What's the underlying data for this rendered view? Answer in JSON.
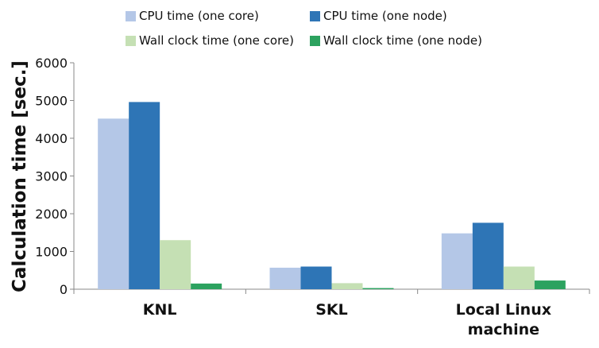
{
  "chart_data": {
    "type": "bar",
    "title": "",
    "xlabel": "",
    "ylabel": "Calculation time [sec.]",
    "ylim": [
      0,
      6000
    ],
    "yticks": [
      0,
      1000,
      2000,
      3000,
      4000,
      5000,
      6000
    ],
    "grid": false,
    "legend_position": "top",
    "categories": [
      [
        "KNL"
      ],
      [
        "SKL"
      ],
      [
        "Local Linux",
        "machine"
      ]
    ],
    "series": [
      {
        "name": "CPU time (one core)",
        "color": "#b4c7e7",
        "values": [
          4520,
          570,
          1480
        ]
      },
      {
        "name": "CPU time (one node)",
        "color": "#2e75b6",
        "values": [
          4960,
          600,
          1760
        ]
      },
      {
        "name": "Wall clock time (one core)",
        "color": "#c5e0b4",
        "values": [
          1300,
          160,
          600
        ]
      },
      {
        "name": "Wall clock time (one node)",
        "color": "#2ca25f",
        "values": [
          150,
          30,
          230
        ]
      }
    ]
  }
}
